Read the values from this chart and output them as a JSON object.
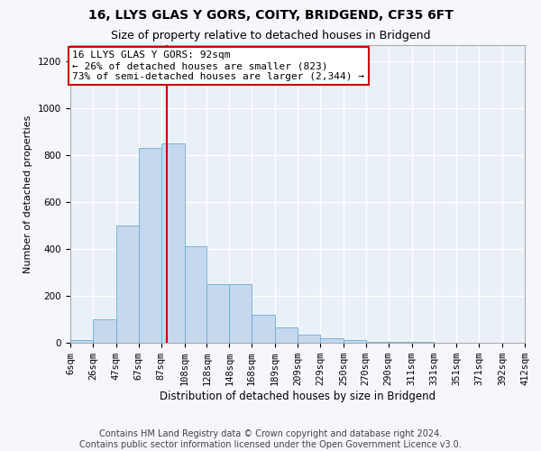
{
  "title": "16, LLYS GLAS Y GORS, COITY, BRIDGEND, CF35 6FT",
  "subtitle": "Size of property relative to detached houses in Bridgend",
  "xlabel": "Distribution of detached houses by size in Bridgend",
  "ylabel": "Number of detached properties",
  "bar_color": "#c5d8ee",
  "bar_edge_color": "#6aaed6",
  "bg_color": "#eaf0f8",
  "vline_color": "#cc0000",
  "vline_x": 92,
  "annotation_text": "16 LLYS GLAS Y GORS: 92sqm\n← 26% of detached houses are smaller (823)\n73% of semi-detached houses are larger (2,344) →",
  "bins": [
    6,
    26,
    47,
    67,
    87,
    108,
    128,
    148,
    168,
    189,
    209,
    229,
    250,
    270,
    290,
    311,
    331,
    351,
    371,
    392,
    412
  ],
  "heights": [
    10,
    100,
    500,
    830,
    850,
    410,
    250,
    250,
    120,
    65,
    35,
    20,
    10,
    5,
    5,
    2,
    1,
    1,
    0,
    0
  ],
  "ylim": [
    0,
    1270
  ],
  "yticks": [
    0,
    200,
    400,
    600,
    800,
    1000,
    1200
  ],
  "footer_text": "Contains HM Land Registry data © Crown copyright and database right 2024.\nContains public sector information licensed under the Open Government Licence v3.0.",
  "title_fontsize": 10,
  "subtitle_fontsize": 9,
  "tick_fontsize": 7.5,
  "ylabel_fontsize": 8,
  "xlabel_fontsize": 8.5,
  "footer_fontsize": 7,
  "annotation_fontsize": 8
}
